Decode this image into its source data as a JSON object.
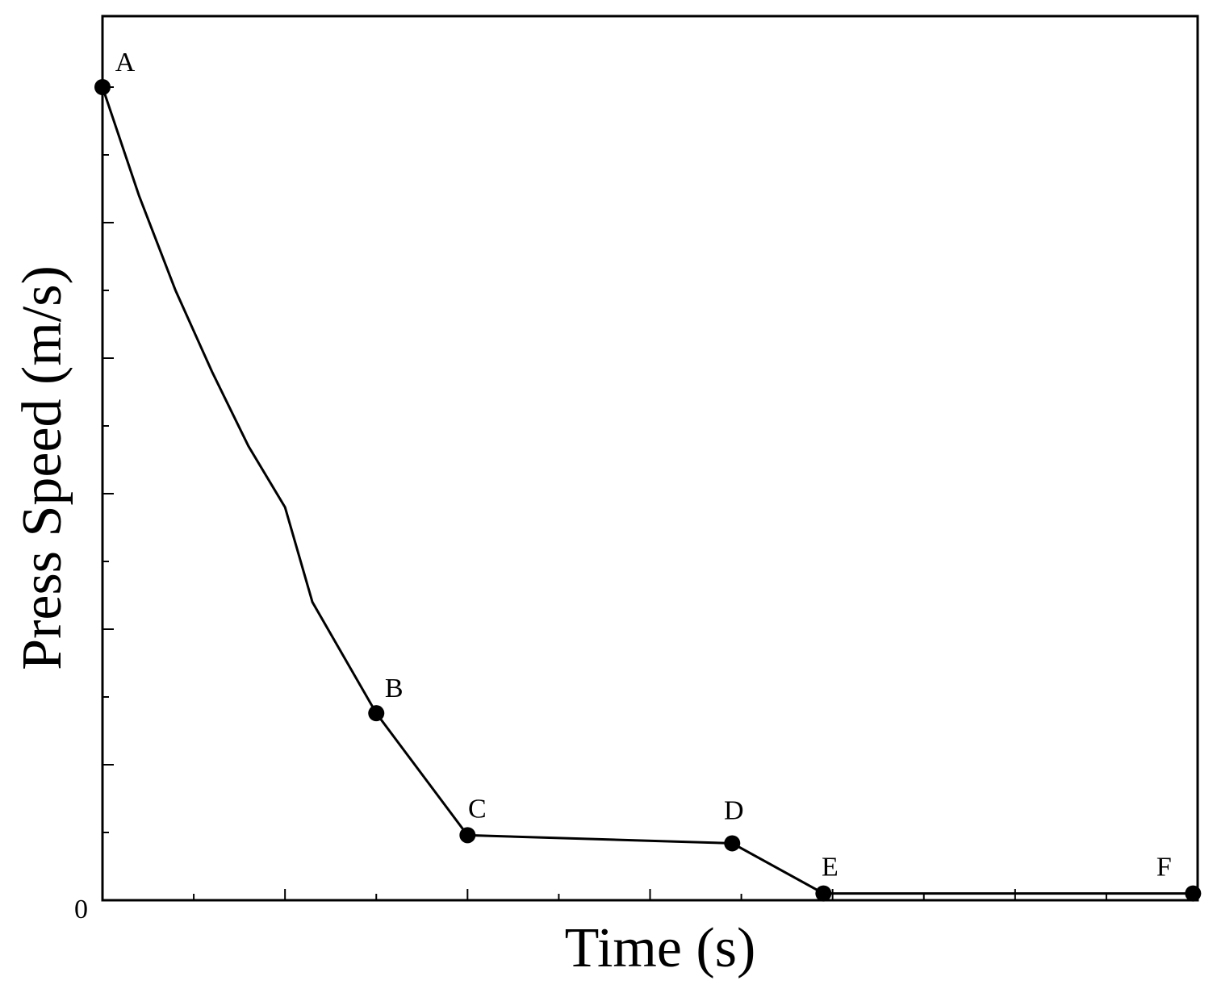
{
  "chart_data": {
    "type": "line",
    "xlabel": "Time (s)",
    "ylabel": "Press Speed (m/s)",
    "x_tick_labels": [],
    "y_tick_labels": [
      "0"
    ],
    "xlim": [
      0,
      12
    ],
    "ylim": [
      0,
      6
    ],
    "x_minor_ticks": 12,
    "y_minor_ticks": 6,
    "grid": false,
    "legend": "none",
    "series": [
      {
        "color": "#000000",
        "points": [
          {
            "label": "A",
            "x": 0.0,
            "y": 6.0
          },
          {
            "label": "B",
            "x": 3.0,
            "y": 1.38
          },
          {
            "label": "C",
            "x": 4.0,
            "y": 0.48
          },
          {
            "label": "D",
            "x": 6.9,
            "y": 0.42
          },
          {
            "label": "E",
            "x": 7.9,
            "y": 0.05
          },
          {
            "label": "F",
            "x": 11.95,
            "y": 0.05
          }
        ],
        "curve_between_A_and_B": [
          {
            "x": 0.0,
            "y": 6.0
          },
          {
            "x": 0.4,
            "y": 5.2
          },
          {
            "x": 0.8,
            "y": 4.5
          },
          {
            "x": 1.2,
            "y": 3.9
          },
          {
            "x": 1.6,
            "y": 3.35
          },
          {
            "x": 2.0,
            "y": 2.9
          },
          {
            "x": 2.3,
            "y": 2.2
          },
          {
            "x": 3.0,
            "y": 1.38
          }
        ]
      }
    ]
  }
}
